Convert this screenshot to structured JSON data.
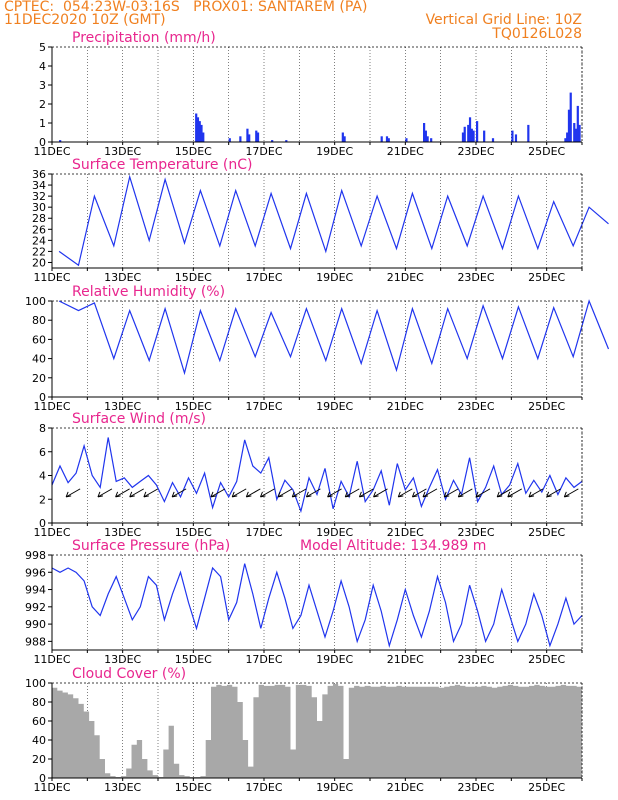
{
  "header": {
    "line1": "CPTEC:  054:23W-03:16S   PROX01: SANTAREM (PA)",
    "line2": "11DEC2020 10Z (GMT)",
    "grid_note": "Vertical Grid Line: 10Z",
    "code": "TQ0126L028"
  },
  "x_axis": {
    "labels": [
      "11DEC",
      "13DEC",
      "15DEC",
      "17DEC",
      "19DEC",
      "21DEC",
      "23DEC",
      "25DEC"
    ],
    "day_span": [
      0,
      15
    ]
  },
  "chart_data": [
    {
      "type": "bar",
      "title": "Precipitation (mm/h)",
      "ylim": [
        0,
        5
      ],
      "yticks": [
        0,
        1,
        2,
        3,
        4,
        5
      ],
      "color": "#2035ee",
      "x_days": [
        0.2,
        4.05,
        4.1,
        4.15,
        4.2,
        4.25,
        5.0,
        5.3,
        5.5,
        5.55,
        5.75,
        5.8,
        6.2,
        6.6,
        8.2,
        8.25,
        9.3,
        9.45,
        9.5,
        10.0,
        10.5,
        10.55,
        10.6,
        10.7,
        11.6,
        11.65,
        11.75,
        11.8,
        11.85,
        11.9,
        12.0,
        12.2,
        12.45,
        13.0,
        13.1,
        13.45,
        14.5,
        14.55,
        14.6,
        14.65,
        14.75,
        14.8,
        14.85,
        14.9
      ],
      "values": [
        0.1,
        1.5,
        1.3,
        1.1,
        0.9,
        0.5,
        0.2,
        0.3,
        0.7,
        0.4,
        0.6,
        0.5,
        0.1,
        0.1,
        0.5,
        0.3,
        0.3,
        0.3,
        0.2,
        0.2,
        1.0,
        0.6,
        0.3,
        0.2,
        0.5,
        0.8,
        0.9,
        1.3,
        0.7,
        0.6,
        1.1,
        0.6,
        0.2,
        0.6,
        0.4,
        0.9,
        0.2,
        0.5,
        1.7,
        2.6,
        1.0,
        0.7,
        1.9,
        0.9
      ]
    },
    {
      "type": "line",
      "title": "Surface Temperature (nC)",
      "ylim": [
        19,
        36
      ],
      "yticks": [
        20,
        22,
        24,
        26,
        28,
        30,
        32,
        34,
        36
      ],
      "color": "#2035ee",
      "daily_max": [
        22,
        32,
        35.5,
        35,
        33,
        33,
        32.5,
        32.5,
        33,
        32,
        32.5,
        32,
        32,
        32,
        31,
        30
      ],
      "daily_min": [
        19.5,
        23,
        24,
        23.5,
        23,
        23,
        22.5,
        22,
        23,
        22.5,
        22.5,
        23,
        22.5,
        22.5,
        23,
        27
      ]
    },
    {
      "type": "line",
      "title": "Relative Humidity (%)",
      "ylim": [
        0,
        100
      ],
      "yticks": [
        0,
        20,
        40,
        60,
        80,
        100
      ],
      "color": "#2035ee",
      "daily_max": [
        100,
        98,
        90,
        92,
        90,
        92,
        88,
        92,
        92,
        90,
        92,
        92,
        95,
        94,
        93,
        100
      ],
      "daily_min": [
        90,
        40,
        38,
        25,
        38,
        42,
        42,
        38,
        35,
        28,
        35,
        40,
        40,
        40,
        42,
        50
      ]
    },
    {
      "type": "line",
      "title": "Surface Wind (m/s)",
      "ylim": [
        0,
        8
      ],
      "yticks": [
        0,
        2,
        4,
        6,
        8
      ],
      "color": "#2035ee",
      "speed": [
        3.2,
        4.8,
        3.4,
        4.2,
        6.5,
        4.0,
        3.0,
        7.2,
        3.5,
        3.8,
        3.0,
        3.5,
        4.0,
        3.2,
        1.8,
        3.4,
        2.2,
        3.8,
        2.5,
        4.2,
        1.3,
        3.4,
        2.2,
        3.5,
        7.0,
        4.8,
        4.2,
        5.5,
        2.0,
        3.6,
        2.8,
        1.0,
        3.8,
        2.4,
        4.6,
        1.2,
        3.5,
        2.2,
        5.2,
        1.8,
        2.8,
        4.4,
        1.5,
        5.0,
        2.8,
        3.8,
        1.4,
        3.0,
        4.5,
        2.0,
        3.6,
        2.4,
        5.5,
        1.8,
        3.0,
        4.8,
        2.4,
        3.2,
        5.0,
        2.5,
        3.6,
        2.6,
        4.0,
        2.4,
        3.8,
        3.0,
        3.5
      ],
      "barb_days": [
        0.4,
        1.3,
        1.8,
        2.2,
        2.6,
        3.4,
        4.5,
        5.1,
        5.5,
        5.9,
        6.4,
        6.8,
        7.2,
        7.8,
        8.3,
        8.7,
        9.1,
        9.8,
        10.2,
        10.5,
        11.1,
        11.5,
        12.0,
        12.6,
        12.9,
        13.5,
        14.0,
        14.5
      ]
    },
    {
      "type": "line",
      "title": "Surface Pressure (hPa)",
      "subtitle": "Model Altitude: 134.989 m",
      "ylim": [
        987,
        998
      ],
      "yticks": [
        988,
        990,
        992,
        994,
        996,
        998
      ],
      "color": "#2035ee",
      "values": [
        996.5,
        996,
        996.5,
        996,
        995,
        992,
        991,
        993.5,
        995.5,
        993,
        990.5,
        992,
        995.5,
        994.5,
        990.5,
        993.5,
        996,
        992.5,
        989.5,
        993,
        996.5,
        995.5,
        990.5,
        992.5,
        997,
        993.5,
        989.5,
        993,
        996,
        993,
        989.5,
        991,
        994.5,
        991.5,
        988.5,
        991.5,
        995,
        992,
        988,
        990.5,
        994.5,
        991.5,
        987.5,
        990.5,
        994,
        991,
        988.5,
        991.5,
        995.5,
        992.5,
        988,
        990,
        994.5,
        991.5,
        988,
        990,
        994,
        991,
        988,
        990,
        993.5,
        991,
        987.5,
        990,
        993,
        990,
        991
      ]
    },
    {
      "type": "area",
      "title": "Cloud Cover (%)",
      "ylim": [
        0,
        100
      ],
      "yticks": [
        0,
        20,
        40,
        60,
        80,
        100
      ],
      "color": "#a8a8a8",
      "values": [
        95,
        92,
        90,
        88,
        84,
        78,
        70,
        60,
        45,
        20,
        5,
        2,
        1,
        2,
        10,
        35,
        40,
        20,
        8,
        3,
        1,
        30,
        55,
        15,
        3,
        2,
        1,
        1,
        2,
        40,
        96,
        98,
        97,
        98,
        96,
        80,
        40,
        12,
        85,
        98,
        97,
        97,
        98,
        98,
        96,
        30,
        98,
        98,
        97,
        85,
        60,
        88,
        97,
        99,
        97,
        20,
        95,
        97,
        96,
        97,
        96,
        96,
        97,
        96,
        96,
        97,
        96,
        96,
        96,
        96,
        96,
        96,
        96,
        95,
        96,
        97,
        98,
        97,
        96,
        96,
        96,
        97,
        96,
        95,
        96,
        97,
        98,
        97,
        96,
        96,
        97,
        98,
        97,
        96,
        96,
        97,
        98,
        97,
        97,
        96
      ]
    }
  ]
}
